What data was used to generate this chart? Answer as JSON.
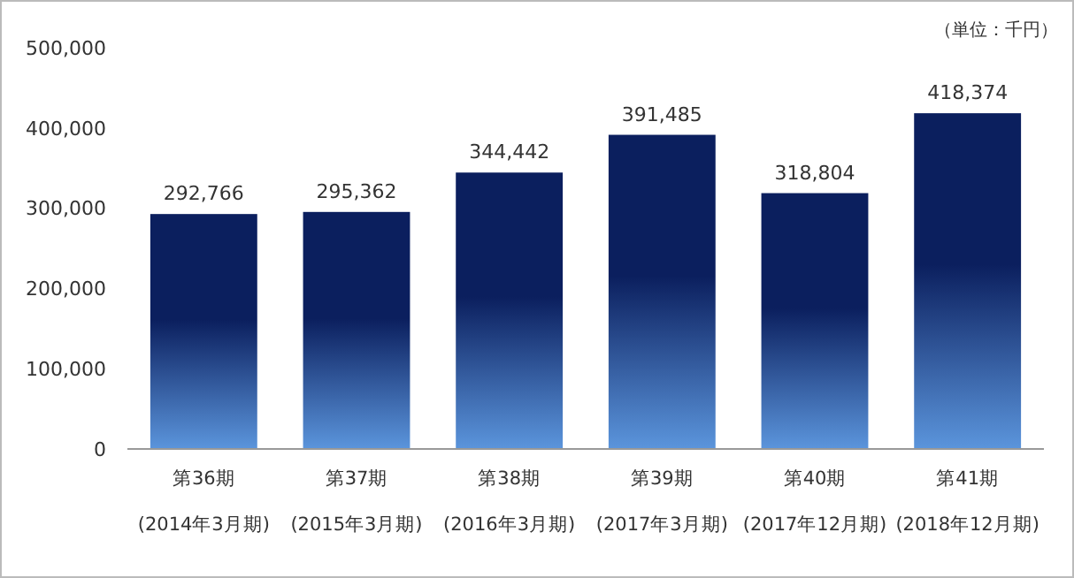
{
  "chart_data": {
    "type": "bar",
    "categories": [
      "第36期\n(2014年3月期)",
      "第37期\n(2015年3月期)",
      "第38期\n(2016年3月期)",
      "第39期\n(2017年3月期)",
      "第40期\n(2017年12月期)",
      "第41期\n(2018年12月期)"
    ],
    "values": [
      292766,
      295362,
      344442,
      391485,
      318804,
      418374
    ],
    "color": "#0b1f5e",
    "ylim": [
      0,
      500000
    ],
    "yticks": [
      {
        "value": 0,
        "label": "0"
      },
      {
        "value": 100000,
        "label": "100,000"
      },
      {
        "value": 200000,
        "label": "200,000"
      },
      {
        "value": 300000,
        "label": "300,000"
      },
      {
        "value": 400000,
        "label": "400,000"
      },
      {
        "value": 500000,
        "label": "500,000"
      }
    ],
    "grid": false,
    "value_labels": [
      "292,766",
      "295,362",
      "344,442",
      "391,485",
      "318,804",
      "418,374"
    ],
    "annotations": [
      "（単位：千円）"
    ]
  }
}
